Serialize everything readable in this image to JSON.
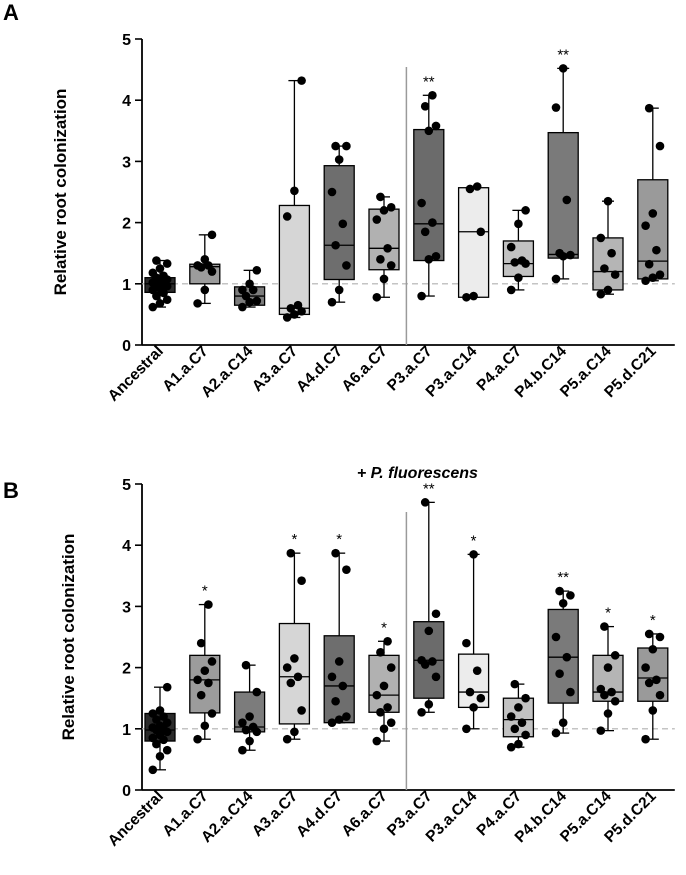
{
  "chart_data": [
    {
      "type": "box",
      "panel_label": "A",
      "title": "",
      "xlabel": "",
      "ylabel": "Relative root colonization",
      "ylim": [
        0,
        5
      ],
      "yticks": [
        0,
        1,
        2,
        3,
        4,
        5
      ],
      "reference_line": 1,
      "categories": [
        "Ancestral",
        "A1.a.C7",
        "A2.a.C14",
        "A3.a.C7",
        "A4.d.C7",
        "A6.a.C7",
        "P3.a.C7",
        "P3.a.C14",
        "P4.a.C7",
        "P4.b.C14",
        "P5.a.C14",
        "P5.d.C21"
      ],
      "fills": [
        "#2b2b2b",
        "#9c9c9c",
        "#7c7c7c",
        "#d6d6d6",
        "#6e6e6e",
        "#b1b1b1",
        "#6b6b6b",
        "#ececec",
        "#c2c2c2",
        "#7a7a7a",
        "#b5b5b5",
        "#9a9a9a"
      ],
      "boxes": [
        {
          "min": 0.62,
          "q1": 0.86,
          "median": 1.0,
          "q3": 1.1,
          "max": 1.38
        },
        {
          "min": 0.68,
          "q1": 1.0,
          "median": 1.28,
          "q3": 1.32,
          "max": 1.8
        },
        {
          "min": 0.62,
          "q1": 0.65,
          "median": 0.8,
          "q3": 0.95,
          "max": 1.22
        },
        {
          "min": 0.45,
          "q1": 0.5,
          "median": 0.6,
          "q3": 2.28,
          "max": 4.32
        },
        {
          "min": 0.7,
          "q1": 1.07,
          "median": 1.63,
          "q3": 2.93,
          "max": 3.25
        },
        {
          "min": 0.78,
          "q1": 1.23,
          "median": 1.58,
          "q3": 2.22,
          "max": 2.42
        },
        {
          "min": 0.8,
          "q1": 1.38,
          "median": 1.98,
          "q3": 3.52,
          "max": 4.08
        },
        {
          "min": 0.78,
          "q1": 0.78,
          "median": 1.85,
          "q3": 2.57,
          "max": 2.59
        },
        {
          "min": 0.9,
          "q1": 1.12,
          "median": 1.33,
          "q3": 1.7,
          "max": 2.2
        },
        {
          "min": 1.08,
          "q1": 1.42,
          "median": 1.48,
          "q3": 3.47,
          "max": 4.52
        },
        {
          "min": 0.83,
          "q1": 0.9,
          "median": 1.2,
          "q3": 1.75,
          "max": 2.35
        },
        {
          "min": 1.05,
          "q1": 1.08,
          "median": 1.37,
          "q3": 2.7,
          "max": 3.87
        }
      ],
      "points": [
        [
          0.62,
          0.68,
          0.74,
          0.8,
          0.85,
          0.9,
          0.93,
          0.96,
          0.98,
          1.0,
          1.02,
          1.04,
          1.07,
          1.1,
          1.13,
          1.18,
          1.25,
          1.33,
          1.38
        ],
        [
          0.68,
          0.9,
          1.2,
          1.27,
          1.3,
          1.3,
          1.4,
          1.8
        ],
        [
          0.62,
          0.7,
          0.72,
          0.8,
          0.9,
          0.9,
          1.0,
          1.22
        ],
        [
          0.45,
          0.5,
          0.55,
          0.6,
          0.65,
          2.1,
          2.52,
          4.32
        ],
        [
          0.7,
          0.9,
          1.3,
          1.63,
          1.98,
          2.5,
          3.03,
          3.25,
          3.25
        ],
        [
          0.78,
          1.08,
          1.3,
          1.4,
          1.58,
          2.05,
          2.2,
          2.25,
          2.42
        ],
        [
          0.8,
          1.4,
          1.45,
          1.85,
          2.0,
          2.32,
          3.5,
          3.58,
          3.9,
          4.08
        ],
        [
          0.78,
          0.8,
          1.85,
          2.55,
          2.59
        ],
        [
          0.9,
          1.1,
          1.33,
          1.35,
          1.38,
          1.6,
          1.98,
          2.2
        ],
        [
          1.08,
          1.45,
          1.47,
          1.5,
          2.37,
          3.88,
          4.52
        ],
        [
          0.83,
          0.9,
          1.15,
          1.25,
          1.5,
          1.75,
          2.35
        ],
        [
          1.05,
          1.1,
          1.15,
          1.32,
          1.55,
          1.95,
          2.15,
          3.25,
          3.87
        ]
      ],
      "significance": [
        "",
        "",
        "",
        "",
        "",
        "",
        "**",
        "",
        "",
        "**",
        "",
        ""
      ]
    },
    {
      "type": "box",
      "panel_label": "B",
      "title": "+ P. fluorescens",
      "xlabel": "",
      "ylabel": "Relative root colonization",
      "ylim": [
        0,
        5
      ],
      "yticks": [
        0,
        1,
        2,
        3,
        4,
        5
      ],
      "reference_line": 1,
      "categories": [
        "Ancestral",
        "A1.a.C7",
        "A2.a.C14",
        "A3.a.C7",
        "A4.d.C7",
        "A6.a.C7",
        "P3.a.C7",
        "P3.a.C14",
        "P4.a.C7",
        "P4.b.C14",
        "P5.a.C14",
        "P5.d.C21"
      ],
      "fills": [
        "#2b2b2b",
        "#9c9c9c",
        "#7c7c7c",
        "#d6d6d6",
        "#6e6e6e",
        "#b1b1b1",
        "#6b6b6b",
        "#ececec",
        "#c2c2c2",
        "#7a7a7a",
        "#b5b5b5",
        "#9a9a9a"
      ],
      "boxes": [
        {
          "min": 0.33,
          "q1": 0.8,
          "median": 0.98,
          "q3": 1.25,
          "max": 1.68
        },
        {
          "min": 0.83,
          "q1": 1.26,
          "median": 1.8,
          "q3": 2.2,
          "max": 3.03
        },
        {
          "min": 0.65,
          "q1": 0.95,
          "median": 1.03,
          "q3": 1.6,
          "max": 2.04
        },
        {
          "min": 0.83,
          "q1": 1.08,
          "median": 1.85,
          "q3": 2.72,
          "max": 3.87
        },
        {
          "min": 1.1,
          "q1": 1.1,
          "median": 1.7,
          "q3": 2.52,
          "max": 3.87
        },
        {
          "min": 0.8,
          "q1": 1.27,
          "median": 1.55,
          "q3": 2.2,
          "max": 2.43
        },
        {
          "min": 1.27,
          "q1": 1.5,
          "median": 2.12,
          "q3": 2.75,
          "max": 4.7
        },
        {
          "min": 1.0,
          "q1": 1.35,
          "median": 1.6,
          "q3": 2.22,
          "max": 3.85
        },
        {
          "min": 0.7,
          "q1": 0.87,
          "median": 1.15,
          "q3": 1.5,
          "max": 1.73
        },
        {
          "min": 0.93,
          "q1": 1.42,
          "median": 2.17,
          "q3": 2.95,
          "max": 3.25
        },
        {
          "min": 0.97,
          "q1": 1.45,
          "median": 1.6,
          "q3": 2.2,
          "max": 2.67
        },
        {
          "min": 0.83,
          "q1": 1.45,
          "median": 1.83,
          "q3": 2.32,
          "max": 2.55
        }
      ],
      "points": [
        [
          0.33,
          0.55,
          0.65,
          0.75,
          0.82,
          0.85,
          0.9,
          0.95,
          0.98,
          1.0,
          1.02,
          1.05,
          1.1,
          1.15,
          1.2,
          1.25,
          1.3,
          1.68
        ],
        [
          0.83,
          1.05,
          1.25,
          1.55,
          1.75,
          1.8,
          1.95,
          2.1,
          2.4,
          3.03
        ],
        [
          0.65,
          0.8,
          0.95,
          0.98,
          1.03,
          1.1,
          1.2,
          1.6,
          2.04
        ],
        [
          0.83,
          0.95,
          1.3,
          1.75,
          1.85,
          2.0,
          2.15,
          3.42,
          3.87
        ],
        [
          1.1,
          1.15,
          1.2,
          1.45,
          1.7,
          1.85,
          2.1,
          3.6,
          3.87
        ],
        [
          0.8,
          1.0,
          1.1,
          1.27,
          1.35,
          1.55,
          1.7,
          2.0,
          2.25,
          2.43
        ],
        [
          1.27,
          1.4,
          1.85,
          2.05,
          2.1,
          2.12,
          2.6,
          2.88,
          4.7
        ],
        [
          1.0,
          1.35,
          1.5,
          1.6,
          1.95,
          2.4,
          3.85
        ],
        [
          0.7,
          0.75,
          0.9,
          1.0,
          1.1,
          1.2,
          1.35,
          1.5,
          1.73
        ],
        [
          0.93,
          1.1,
          1.6,
          1.9,
          2.17,
          2.5,
          3.05,
          3.18,
          3.25
        ],
        [
          0.97,
          1.25,
          1.45,
          1.55,
          1.6,
          1.65,
          2.0,
          2.2,
          2.67
        ],
        [
          0.83,
          1.3,
          1.55,
          1.75,
          1.8,
          2.0,
          2.3,
          2.5,
          2.55
        ]
      ],
      "significance": [
        "",
        "*",
        "",
        "*",
        "*",
        "*",
        "**",
        "*",
        "",
        "**",
        "*",
        "*"
      ]
    }
  ]
}
